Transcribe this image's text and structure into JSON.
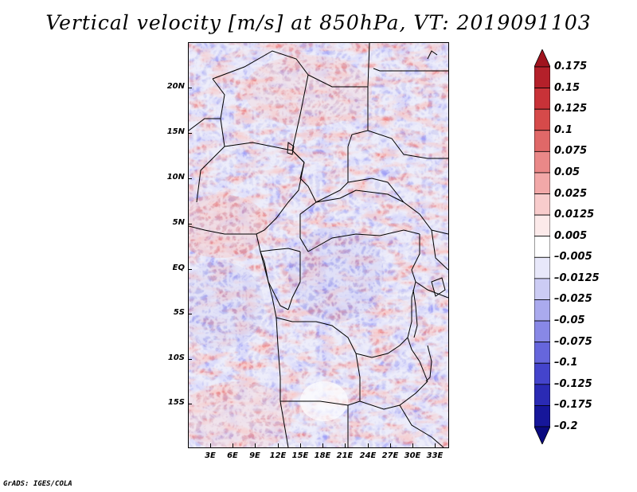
{
  "title": "Vertical velocity [m/s] at 850hPa, VT: 2019091103",
  "footer": "GrADS: IGES/COLA",
  "map": {
    "variable": "Vertical velocity",
    "units": "m/s",
    "level": "850hPa",
    "valid_time": "2019091103",
    "lat_labels": [
      "20N",
      "15N",
      "10N",
      "5N",
      "EQ",
      "5S",
      "10S",
      "15S"
    ],
    "lon_labels": [
      "3E",
      "6E",
      "9E",
      "12E",
      "15E",
      "18E",
      "21E",
      "24E",
      "27E",
      "30E",
      "33E"
    ]
  },
  "colorbar": {
    "labels": [
      "0.175",
      "0.15",
      "0.125",
      "0.1",
      "0.075",
      "0.05",
      "0.025",
      "0.0125",
      "0.005",
      "–0.005",
      "–0.0125",
      "–0.025",
      "–0.05",
      "–0.075",
      "–0.1",
      "–0.125",
      "–0.175",
      "–0.2"
    ],
    "colors": [
      "#a0141e",
      "#b4202a",
      "#c83238",
      "#d64a4a",
      "#e06868",
      "#ea8888",
      "#f2a8a8",
      "#f8cccc",
      "#fceaea",
      "#ffffff",
      "#e8e8fa",
      "#ccccf4",
      "#aaaaee",
      "#8888e6",
      "#6666dc",
      "#4444cc",
      "#2a2ab4",
      "#16169a",
      "#0a0a80"
    ]
  }
}
